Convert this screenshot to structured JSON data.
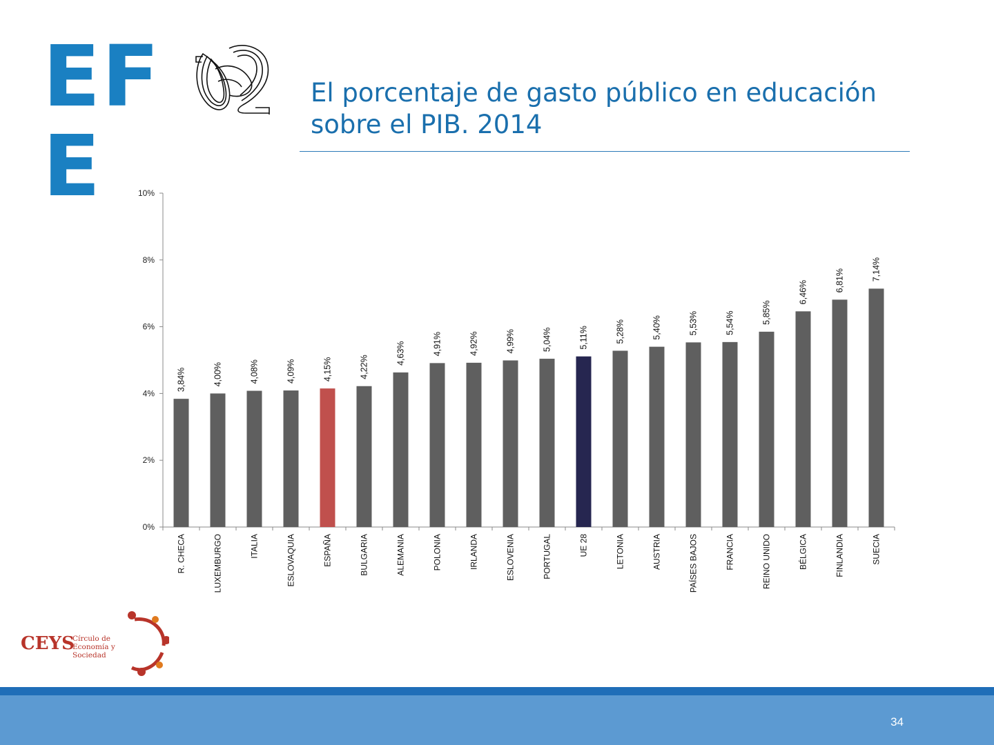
{
  "header": {
    "logo_text_left": "EF",
    "logo_text_right": "E",
    "title_line1": "El porcentaje de gasto público en educación",
    "title_line2": "sobre el PIB. 2014"
  },
  "colors": {
    "brand_blue": "#1a80c2",
    "bar_default": "#5f5f5f",
    "bar_spain": "#c0504d",
    "bar_eu": "#262650",
    "footer": "#5c9ad2"
  },
  "chart_data": {
    "type": "bar",
    "title": "",
    "xlabel": "",
    "ylabel": "",
    "ylim": [
      0,
      10
    ],
    "yticks": [
      "0%",
      "2%",
      "4%",
      "6%",
      "8%",
      "10%"
    ],
    "categories": [
      "R. CHECA",
      "LUXEMBURGO",
      "ITALIA",
      "ESLOVAQUIA",
      "ESPAÑA",
      "BULGARIA",
      "ALEMANIA",
      "POLONIA",
      "IRLANDA",
      "ESLOVENIA",
      "PORTUGAL",
      "UE 28",
      "LETONIA",
      "AUSTRIA",
      "PAÍSES BAJOS",
      "FRANCIA",
      "REINO UNIDO",
      "BÉLGICA",
      "FINLANDIA",
      "SUECIA"
    ],
    "values": [
      3.84,
      4.0,
      4.08,
      4.09,
      4.15,
      4.22,
      4.63,
      4.91,
      4.92,
      4.99,
      5.04,
      5.11,
      5.28,
      5.4,
      5.53,
      5.54,
      5.85,
      6.46,
      6.81,
      7.14
    ],
    "labels": [
      "3,84%",
      "4,00%",
      "4,08%",
      "4,09%",
      "4,15%",
      "4,22%",
      "4,63%",
      "4,91%",
      "4,92%",
      "4,99%",
      "5,04%",
      "5,11%",
      "5,28%",
      "5,40%",
      "5,53%",
      "5,54%",
      "5,85%",
      "6,46%",
      "6,81%",
      "7,14%"
    ],
    "highlight": {
      "ESPAÑA": "bar_spain",
      "UE 28": "bar_eu"
    },
    "grid": false,
    "legend": "none"
  },
  "footer": {
    "ceys_text": "CEYS",
    "ceys_sub": "Círculo de Economía y Sociedad",
    "page_number": "34"
  }
}
